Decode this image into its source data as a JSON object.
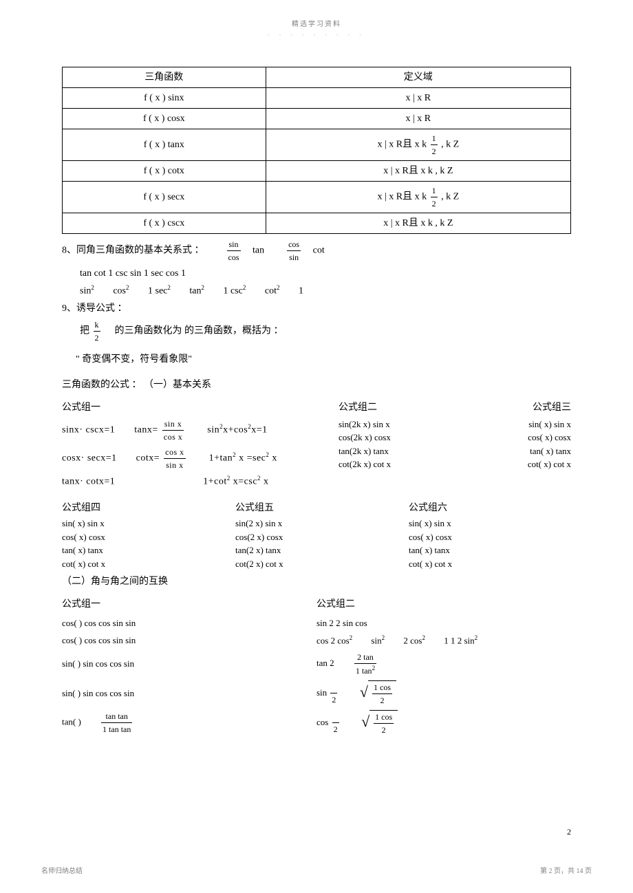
{
  "header": {
    "title": "精选学习资料",
    "dots": "- - - - - - - - -"
  },
  "table": {
    "head_left": "三角函数",
    "head_right": "定义域",
    "rows": [
      {
        "f": "f ( x )    sinx",
        "d": "x | x    R"
      },
      {
        "f": "f ( x )    cosx",
        "d": "x | x    R"
      },
      {
        "f": "f ( x )    tanx",
        "d_prefix": "x | x    R且 x    k",
        "d_frac_num": "1",
        "d_frac_den": "2",
        "d_suffix": "  , k    Z"
      },
      {
        "f": "f ( x )    cotx",
        "d": "x | x    R且 x    k  , k    Z"
      },
      {
        "f": "f ( x )    secx",
        "d_prefix": "x | x    R且 x    k",
        "d_frac_num": "1",
        "d_frac_den": "2",
        "d_suffix": "  , k    Z"
      },
      {
        "f": "f ( x )    cscx",
        "d": "x | x    R且 x    k  , k    Z"
      }
    ]
  },
  "item8": {
    "label": "8、同角三角函数的基本关系式 ：",
    "eq1_left": "sin",
    "eq1_den": "cos",
    "eq1_res": "tan",
    "eq2_left": "cos",
    "eq2_den": "sin",
    "eq2_res": "cot",
    "line2": "tan    cot     1  csc    sin    1       sec    cos     1",
    "line3_a": "sin",
    "line3_b": "cos",
    "line3_c": "1  sec",
    "line3_d": "tan",
    "line3_e": "1  csc",
    "line3_f": "cot",
    "line3_g": "1"
  },
  "item9": {
    "label": "9、诱导公式 ：",
    "put_prefix": "把",
    "frac_num": "k",
    "frac_den": "2",
    "put_mid": "的三角函数化为      的三角函数，概括为 ：",
    "quote": "\" 奇变偶不变，符号看象限\"",
    "subhead": "三角函数的公式 ：  （一）基本关系"
  },
  "groups": {
    "g1_title": "公式组一",
    "g2_title": "公式组二",
    "g3_title": "公式组三",
    "g4_title": "公式组四",
    "g5_title": "公式组五",
    "g6_title": "公式组六",
    "g1_l1a": "sinx·  cscx=1",
    "g1_l1b_pre": "tanx=",
    "g1_l1b_num": "sin x",
    "g1_l1b_den": "cos x",
    "g1_l1c": "sin",
    "g1_l1d": "x+cos",
    "g1_l1e": "x=1",
    "g1_l2a": "cosx·  secx=1",
    "g1_l2b_pre": "cot",
    "g1_l2b_x": "x=",
    "g1_l2b_num": "cos x",
    "g1_l2b_den": "sin x",
    "g1_l2c": "1+tan",
    "g1_l2d": " x =sec",
    "g1_l2e": " x",
    "g1_l3a": "tanx·  cotx=1",
    "g1_l3b": "1+cot",
    "g1_l3c": " x=csc",
    "g1_l3d": " x",
    "g2_l1": "sin(2k       x)    sin x",
    "g3_l1": "sin(  x)       sin x",
    "g2_l2": "cos(2k       x)    cosx",
    "g3_l2": "cos(  x)    cosx",
    "g2_l3": "tan(2k       x)    tanx",
    "g3_l3": "tan(  x)       tanx",
    "g2_l4": "cot(2k       x)    cot x",
    "g3_l4": "cot(  x)       cot x",
    "g4_l1": "sin(       x)       sin x",
    "g5_l1": "sin(2       x)       sin x",
    "g6_l1": "sin(       x)    sin x",
    "g4_l2": "cos(       x)       cosx",
    "g5_l2": "cos(2       x)    cosx",
    "g6_l2": "cos(       x)       cosx",
    "g4_l3": "tan(       x)    tanx",
    "g5_l3": "tan(2       x)       tanx",
    "g6_l3": "tan(       x)       tanx",
    "g4_l4": "cot(       x)    cot x",
    "g5_l4": "cot(2       x)       cot x",
    "g6_l4": "cot(       x)       cot x"
  },
  "section2": {
    "head": "（二）角与角之间的互换",
    "col1_title": "公式组一",
    "col2_title": "公式组二",
    "r1a": "cos(         )     cos   cos      sin   sin",
    "r1b": "sin 2      2 sin   cos",
    "r2a": "cos(         )     cos   cos      sin   sin",
    "r2b_a": "cos 2      cos",
    "r2b_b": "sin",
    "r2b_c": "2 cos",
    "r2b_d": "1    1    2 sin",
    "r3a": "sin(         )     sin   cos      cos   sin",
    "r3b_pre": "tan 2",
    "r3b_num": "2 tan",
    "r3b_den_a": "1    tan",
    "r4a": "sin(         )     sin   cos      cos   sin",
    "r4b_pre": "sin",
    "r4b_num": "1    cos",
    "r4b_den": "2",
    "r5a_pre": "tan(         )",
    "r5a_num": "tan      tan",
    "r5a_den": "1    tan   tan",
    "r5b_pre": "cos",
    "r5b_num": "1    cos",
    "r5b_den": "2"
  },
  "footer": {
    "page_small": "2",
    "left": "名师归纳总结",
    "right": "第 2 页，共 14 页"
  }
}
